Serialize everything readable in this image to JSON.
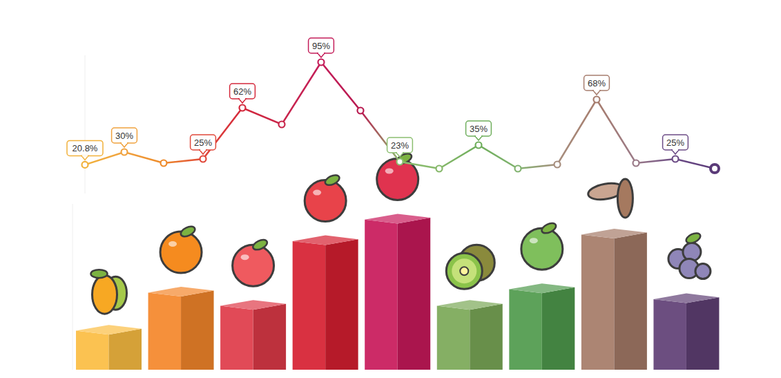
{
  "chart_data": [
    {
      "type": "bar",
      "categories": [
        null,
        null,
        null,
        null,
        null,
        null,
        null,
        null,
        null
      ],
      "values": [
        27,
        50,
        42,
        81,
        94,
        42,
        52,
        85,
        46
      ],
      "colors": [
        "#fbbd42",
        "#f4862a",
        "#de3a48",
        "#d61f30",
        "#c8195a",
        "#7aa857",
        "#4f9a4c",
        "#a57a67",
        "#5f3f75"
      ],
      "ylim": [
        0,
        100
      ],
      "tick_labels": false
    },
    {
      "type": "line",
      "categories": [
        null,
        null,
        null,
        null,
        null,
        null,
        null,
        null,
        null,
        null,
        null,
        null,
        null,
        null,
        null,
        null,
        null
      ],
      "values": [
        20.8,
        30,
        22,
        25,
        62,
        50,
        95,
        60,
        23,
        18,
        35,
        18,
        21,
        68,
        22,
        25,
        18
      ],
      "value_labels": [
        "20.8%",
        "30%",
        null,
        "25%",
        "62%",
        null,
        "95%",
        null,
        "23%",
        null,
        "35%",
        null,
        null,
        "68%",
        null,
        "25%",
        null
      ],
      "colors": [
        "#f1b13b",
        "#f0a23e",
        "#ee8a2a",
        "#e0483a",
        "#d4283b",
        "#c8254a",
        "#c41e5a",
        "#b8194f",
        "#8cbf70",
        "#86b86a",
        "#6fae5c",
        "#82b370",
        "#a78e7e",
        "#a77d6e",
        "#9a7a88",
        "#6c4c86",
        "#5a3a78"
      ],
      "ylim": [
        0,
        100
      ],
      "data_labels": true,
      "marker": "circle",
      "tick_labels": false
    }
  ]
}
